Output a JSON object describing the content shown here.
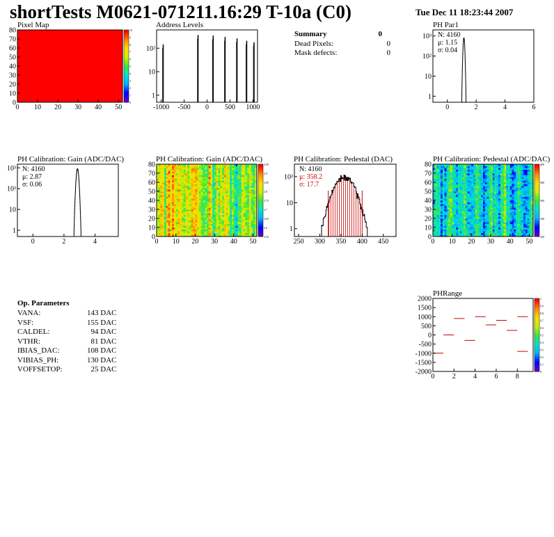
{
  "header": {
    "title": "shortTests M0621-071211.16:29 T-10a (C0)",
    "date": "Tue Dec 11 18:23:44 2007"
  },
  "summary": {
    "title": "Summary",
    "total": "0",
    "rows": [
      {
        "label": "Dead Pixels:",
        "value": "0"
      },
      {
        "label": "Mask defects:",
        "value": "0"
      }
    ]
  },
  "op_params": {
    "title": "Op. Parameters",
    "rows": [
      {
        "label": "VANA:",
        "value": "143 DAC"
      },
      {
        "label": "VSF:",
        "value": "155 DAC"
      },
      {
        "label": "CALDEL:",
        "value": "94 DAC"
      },
      {
        "label": "VTHR:",
        "value": "81 DAC"
      },
      {
        "label": "IBIAS_DAC:",
        "value": "108 DAC"
      },
      {
        "label": "VIBIAS_PH:",
        "value": "130 DAC"
      },
      {
        "label": "VOFFSETOP:",
        "value": "25 DAC"
      }
    ]
  },
  "colors": {
    "histogram_line": "#000000",
    "stats_red": "#cc0000",
    "pixelmap_fill": "#ff0000"
  },
  "chart_data": [
    {
      "id": "pixel-map",
      "type": "heatmap",
      "title": "Pixel Map",
      "xlim": [
        0,
        52
      ],
      "ylim": [
        0,
        80
      ],
      "xticks": [
        "0",
        "10",
        "20",
        "30",
        "40",
        "50"
      ],
      "yticks": [
        "0",
        "10",
        "20",
        "30",
        "40",
        "50",
        "60",
        "70",
        "80"
      ],
      "zlim": [
        0,
        10
      ],
      "zticks": [
        "0",
        "1",
        "2",
        "3",
        "4",
        "5",
        "6",
        "7",
        "8",
        "9",
        "10"
      ],
      "uniform_value": 10
    },
    {
      "id": "address-levels",
      "type": "bar",
      "title": "Address Levels",
      "xlim": [
        -1100,
        1100
      ],
      "yscale": "log",
      "ylim": [
        0.5,
        600
      ],
      "xticks": [
        "-1000",
        "-500",
        "0",
        "500",
        "1000"
      ],
      "yticks": [
        "1",
        "10",
        "10²"
      ],
      "peaks": [
        {
          "x": -960,
          "y": 140
        },
        {
          "x": -200,
          "y": 350
        },
        {
          "x": 130,
          "y": 330
        },
        {
          "x": 390,
          "y": 290
        },
        {
          "x": 650,
          "y": 250
        },
        {
          "x": 860,
          "y": 200
        },
        {
          "x": 1020,
          "y": 170
        }
      ]
    },
    {
      "id": "ph-par1",
      "type": "bar",
      "title": "PH Par1",
      "xlim": [
        -1,
        6
      ],
      "yscale": "log",
      "ylim": [
        0.5,
        2000
      ],
      "xticks": [
        "0",
        "2",
        "4",
        "6"
      ],
      "yticks": [
        "1",
        "10",
        "10²",
        "10³"
      ],
      "stats": {
        "n": "N: 4160",
        "mean": "μ: 1.15",
        "sigma": "σ: 0.04"
      },
      "mean": 1.15,
      "sigma": 0.04,
      "peak": 800
    },
    {
      "id": "ph-gain",
      "type": "bar",
      "title": "PH Calibration: Gain (ADC/DAC)",
      "xlim": [
        -1,
        5.5
      ],
      "yscale": "log",
      "ylim": [
        0.5,
        1500
      ],
      "xticks": [
        "0",
        "2",
        "4"
      ],
      "yticks": [
        "1",
        "10",
        "10²",
        "10³"
      ],
      "stats": {
        "n": "N: 4160",
        "mean": "μ: 2.87",
        "sigma": "σ: 0.06"
      },
      "mean": 2.87,
      "sigma": 0.06,
      "peak": 900
    },
    {
      "id": "ph-gain-map",
      "type": "heatmap",
      "title": "PH Calibration: Gain (ADC/DAC)",
      "xlim": [
        0,
        52
      ],
      "ylim": [
        0,
        80
      ],
      "xticks": [
        "0",
        "10",
        "20",
        "30",
        "40",
        "50"
      ],
      "yticks": [
        "0",
        "10",
        "20",
        "30",
        "40",
        "50",
        "60",
        "70",
        "80"
      ],
      "zlim": [
        2.55,
        3.0
      ],
      "zticks": [
        "2.55",
        "2.6",
        "2.65",
        "2.7",
        "2.75",
        "2.8",
        "2.85",
        "2.9",
        "2.95"
      ]
    },
    {
      "id": "ph-pedestal",
      "type": "bar",
      "title": "PH Calibration: Pedestal (DAC)",
      "xlim": [
        240,
        480
      ],
      "yscale": "log",
      "ylim": [
        0.5,
        300
      ],
      "xticks": [
        "250",
        "300",
        "350",
        "400",
        "450"
      ],
      "yticks": [
        "1",
        "10",
        "10²"
      ],
      "stats": {
        "n": "N: 4160",
        "mean": "μ: 358.2",
        "sigma": "σ: 17.7"
      },
      "mean": 358.2,
      "sigma": 17.7,
      "peak": 95,
      "cut_lines": [
        320,
        400
      ]
    },
    {
      "id": "ph-pedestal-map",
      "type": "heatmap",
      "title": "PH Calibration: Pedestal (ADC/DAC)",
      "xlim": [
        0,
        52
      ],
      "ylim": [
        0,
        80
      ],
      "xticks": [
        "0",
        "10",
        "20",
        "30",
        "40",
        "50"
      ],
      "yticks": [
        "0",
        "10",
        "20",
        "30",
        "40",
        "50",
        "60",
        "70",
        "80"
      ],
      "zlim": [
        310,
        410
      ],
      "zticks": [
        "320",
        "340",
        "360",
        "380",
        "400"
      ]
    },
    {
      "id": "ph-range",
      "type": "scatter",
      "title": "PHRange",
      "xlim": [
        0,
        9.5
      ],
      "ylim": [
        -2000,
        2000
      ],
      "xticks": [
        "0",
        "2",
        "4",
        "6",
        "8"
      ],
      "yticks": [
        "-2000",
        "-1500",
        "-1000",
        "-500",
        "0",
        "500",
        "1000",
        "1500",
        "2000"
      ],
      "zticks": [
        "0",
        "0.1",
        "0.2",
        "0.3",
        "0.4",
        "0.5",
        "0.6",
        "0.7",
        "0.8",
        "0.9",
        "1"
      ],
      "points": [
        {
          "x": 0.5,
          "y": -1000
        },
        {
          "x": 1.5,
          "y": 0
        },
        {
          "x": 2.5,
          "y": 900
        },
        {
          "x": 3.5,
          "y": -300
        },
        {
          "x": 4.5,
          "y": 1000
        },
        {
          "x": 5.5,
          "y": 550
        },
        {
          "x": 6.5,
          "y": 800
        },
        {
          "x": 7.5,
          "y": 250
        },
        {
          "x": 8.5,
          "y": 1000
        },
        {
          "x": 8.5,
          "y": -900
        }
      ]
    }
  ]
}
